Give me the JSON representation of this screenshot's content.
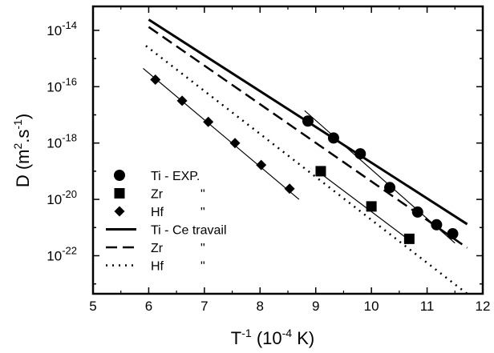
{
  "chart_data": {
    "type": "scatter",
    "title": "",
    "xlabel": {
      "base": "T",
      "sup": "-1",
      "rest": " (10",
      "sup2": "-4",
      "end": " K)"
    },
    "ylabel": {
      "a": "D (m",
      "sup1": "2",
      "b": ".s",
      "sup2": "-1",
      "c": ")"
    },
    "xlim": [
      5,
      12
    ],
    "ylog10lim": [
      -23.35,
      -13.15
    ],
    "x_ticks": [
      5,
      6,
      7,
      8,
      9,
      10,
      11,
      12
    ],
    "x_tick_labels": [
      "5",
      "6",
      "7",
      "8",
      "9",
      "10",
      "11",
      "12"
    ],
    "y_ticks": [
      -22,
      -20,
      -18,
      -16,
      -14
    ],
    "y_tick_labels": [
      {
        "base": "10",
        "exp": "-22"
      },
      {
        "base": "10",
        "exp": "-20"
      },
      {
        "base": "10",
        "exp": "-18"
      },
      {
        "base": "10",
        "exp": "-16"
      },
      {
        "base": "10",
        "exp": "-14"
      }
    ],
    "scale": {
      "y": "log"
    },
    "points": [
      {
        "name": "Ti - EXP.",
        "marker": "circle",
        "data": [
          [
            8.86,
            -17.22
          ],
          [
            9.32,
            -17.82
          ],
          [
            9.8,
            -18.38
          ],
          [
            10.33,
            -19.58
          ],
          [
            10.83,
            -20.45
          ],
          [
            11.17,
            -20.9
          ],
          [
            11.46,
            -21.22
          ]
        ],
        "fit": [
          [
            8.8,
            -16.85
          ],
          [
            11.5,
            -21.55
          ]
        ]
      },
      {
        "name": "Zr",
        "marker": "square",
        "data": [
          [
            9.09,
            -19.0
          ],
          [
            10.0,
            -20.25
          ],
          [
            10.68,
            -21.4
          ]
        ],
        "fit": [
          [
            9.0,
            -18.95
          ],
          [
            10.75,
            -21.55
          ]
        ]
      },
      {
        "name": "Hf",
        "marker": "diamond",
        "data": [
          [
            6.12,
            -15.75
          ],
          [
            6.6,
            -16.5
          ],
          [
            7.07,
            -17.25
          ],
          [
            7.55,
            -18.0
          ],
          [
            8.02,
            -18.78
          ],
          [
            8.53,
            -19.62
          ]
        ],
        "fit": [
          [
            5.9,
            -15.35
          ],
          [
            8.7,
            -20.0
          ]
        ]
      }
    ],
    "lines": [
      {
        "name": "Ti - Ce travail",
        "style": "solid",
        "data": [
          [
            6.0,
            -13.62
          ],
          [
            11.72,
            -20.88
          ]
        ]
      },
      {
        "name": "Zr",
        "style": "dashed",
        "data": [
          [
            6.0,
            -13.88
          ],
          [
            11.72,
            -21.72
          ]
        ]
      },
      {
        "name": "Hf",
        "style": "dotted",
        "data": [
          [
            5.95,
            -14.55
          ],
          [
            11.72,
            -23.35
          ]
        ]
      }
    ],
    "legend": {
      "position": "bottom-left",
      "entries": [
        {
          "kind": "circle",
          "label": "Ti - EXP.",
          "ditto": ""
        },
        {
          "kind": "square",
          "label": "Zr",
          "ditto": "\""
        },
        {
          "kind": "diamond",
          "label": "Hf",
          "ditto": "\""
        },
        {
          "kind": "solid",
          "label": "Ti - Ce travail",
          "ditto": ""
        },
        {
          "kind": "dashed",
          "label": "Zr",
          "ditto": "\""
        },
        {
          "kind": "dotted",
          "label": "Hf",
          "ditto": "\""
        }
      ]
    },
    "grid": false
  }
}
